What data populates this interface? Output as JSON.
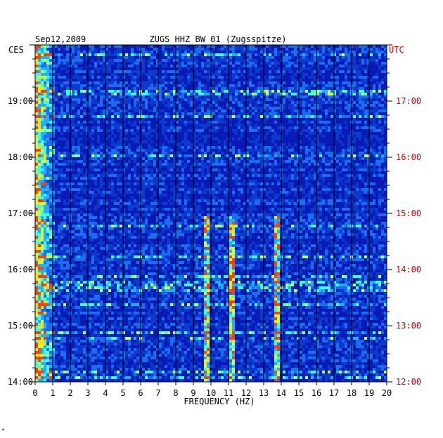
{
  "chart_data": {
    "type": "heatmap",
    "title": "ZUGS HHZ BW 01 (Zugsspitze)",
    "date": "Sep12,2009",
    "xlabel": "FREQUENCY (HZ)",
    "left_axis_label": "CES",
    "right_axis_label": "UTC",
    "xlim": [
      0,
      20
    ],
    "x_ticks": [
      "0",
      "1",
      "2",
      "3",
      "4",
      "5",
      "6",
      "7",
      "8",
      "9",
      "10",
      "11",
      "12",
      "13",
      "14",
      "15",
      "16",
      "17",
      "18",
      "19",
      "20"
    ],
    "left_time_ticks": [
      "14:00",
      "15:00",
      "16:00",
      "17:00",
      "18:00",
      "19:00"
    ],
    "right_time_ticks": [
      "12:00",
      "13:00",
      "14:00",
      "15:00",
      "16:00",
      "17:00"
    ],
    "time_range_ces": [
      "14:00",
      "20:00"
    ],
    "grid": true,
    "colors": {
      "background": "#0a1ab4",
      "low": "#0000a0",
      "mid": "#00c8ff",
      "high": "#ffff00",
      "peak": "#ff2000",
      "utc_text": "#cc0000"
    },
    "persistent_lines_hz": [
      9.7,
      11.2,
      13.8
    ]
  },
  "corner_mark": "*"
}
